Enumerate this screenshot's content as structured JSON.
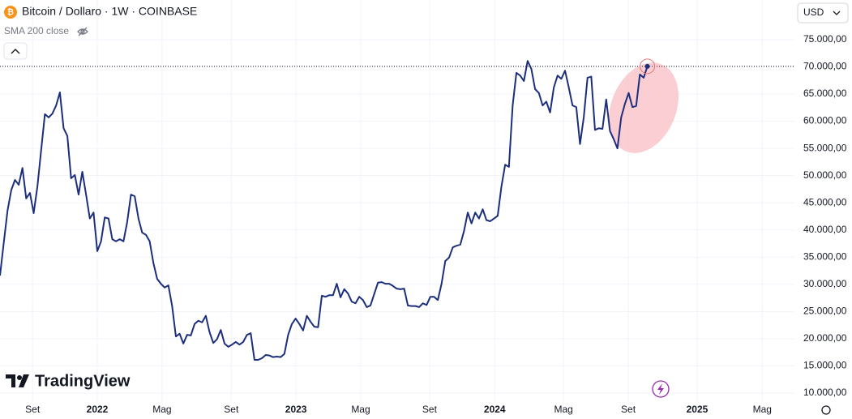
{
  "chart_data": {
    "type": "line",
    "title": "Bitcoin / Dollaro · 1W · COINBASE",
    "subtitle": "SMA 200 close",
    "currency": "USD",
    "watermark": "TradingView",
    "series": [
      {
        "name": "Bitcoin / Dollaro",
        "color": "#1c2f7c",
        "values": [
          31600,
          37600,
          43500,
          47300,
          49200,
          48300,
          51400,
          45800,
          46800,
          43100,
          48000,
          54700,
          61300,
          60700,
          61400,
          62900,
          65300,
          58700,
          57300,
          49500,
          50100,
          46500,
          50700,
          46500,
          42100,
          43200,
          36100,
          37900,
          42300,
          42100,
          38300,
          37900,
          38300,
          37900,
          41500,
          46500,
          46200,
          42100,
          39500,
          39100,
          37900,
          33900,
          31000,
          30100,
          29400,
          29800,
          26000,
          20400,
          20900,
          19100,
          20700,
          20600,
          22700,
          23300,
          23000,
          24200,
          21200,
          19200,
          19900,
          21600,
          19100,
          18500,
          18900,
          19400,
          18900,
          19400,
          20700,
          21000,
          16100,
          16100,
          16400,
          17000,
          16900,
          16600,
          16700,
          16600,
          17200,
          20700,
          22700,
          23700,
          22700,
          21500,
          24200,
          23100,
          22200,
          22100,
          27900,
          27700,
          28000,
          28000,
          30100,
          27600,
          29100,
          28300,
          26800,
          26500,
          27700,
          27100,
          25800,
          26100,
          28200,
          30300,
          30400,
          30100,
          30100,
          29700,
          29200,
          29100,
          29200,
          26100,
          26000,
          26000,
          25800,
          26500,
          26200,
          27700,
          27700,
          27100,
          30100,
          34300,
          34900,
          36800,
          37100,
          37300,
          39800,
          43200,
          41200,
          43200,
          42100,
          43800,
          41800,
          41600,
          42100,
          42600,
          48000,
          52000,
          51600,
          62900,
          68900,
          68400,
          67400,
          71100,
          69600,
          65900,
          65200,
          62900,
          63600,
          61600,
          66200,
          68400,
          67800,
          69300,
          66200,
          62900,
          62600,
          55800,
          60700,
          68000,
          68200,
          58400,
          58700,
          58600,
          64000,
          58200,
          56700,
          55000,
          60700,
          63200,
          65200,
          62600,
          62800,
          68600,
          68000,
          70100
        ]
      }
    ],
    "xlim": [
      0,
      212.3
    ],
    "xticks": [
      {
        "value": 8.7,
        "label": "Set"
      },
      {
        "value": 26,
        "label": "2022"
      },
      {
        "value": 43.3,
        "label": "Mag"
      },
      {
        "value": 61.8,
        "label": "Set"
      },
      {
        "value": 79.1,
        "label": "2023"
      },
      {
        "value": 96.4,
        "label": "Mag"
      },
      {
        "value": 114.8,
        "label": "Set"
      },
      {
        "value": 132.2,
        "label": "2024"
      },
      {
        "value": 150.6,
        "label": "Mag"
      },
      {
        "value": 167.9,
        "label": "Set"
      },
      {
        "value": 186.3,
        "label": "2025"
      },
      {
        "value": 203.7,
        "label": "Mag"
      }
    ],
    "ylim": [
      8500,
      82300
    ],
    "yticks": [
      {
        "value": 10000,
        "label": "10.000,00"
      },
      {
        "value": 15000,
        "label": "15.000,00"
      },
      {
        "value": 20000,
        "label": "20.000,00"
      },
      {
        "value": 25000,
        "label": "25.000,00"
      },
      {
        "value": 30000,
        "label": "30.000,00"
      },
      {
        "value": 35000,
        "label": "35.000,00"
      },
      {
        "value": 40000,
        "label": "40.000,00"
      },
      {
        "value": 45000,
        "label": "45.000,00"
      },
      {
        "value": 50000,
        "label": "50.000,00"
      },
      {
        "value": 55000,
        "label": "55.000,00"
      },
      {
        "value": 60000,
        "label": "60.000,00"
      },
      {
        "value": 65000,
        "label": "65.000,00"
      },
      {
        "value": 70000,
        "label": "70.000,00"
      },
      {
        "value": 75000,
        "label": "75.000,00"
      }
    ],
    "grid": true
  }
}
